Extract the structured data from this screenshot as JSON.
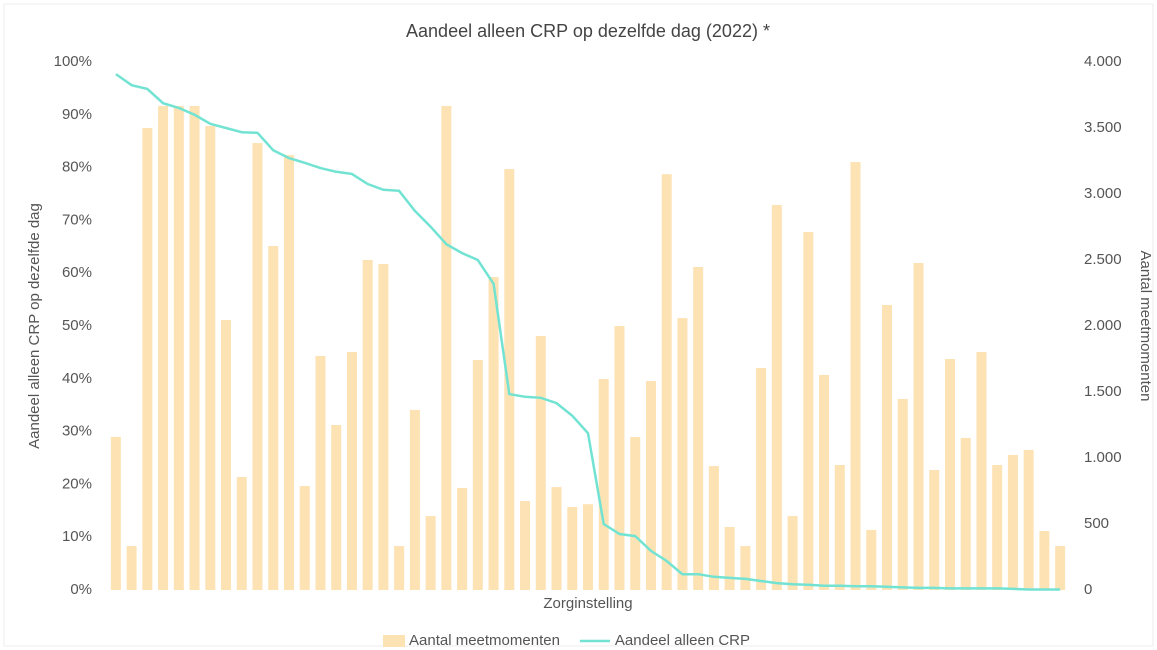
{
  "chart_data": {
    "type": "bar",
    "title": "Aandeel alleen CRP op dezelfde dag (2022) *",
    "x_label": "Zorginstelling",
    "y_label": "Aandeel alleen CRP op dezelfde dag",
    "y2_label": "Aantal meetmomenten",
    "categories": [
      null,
      null,
      null,
      null,
      null,
      null,
      null,
      null,
      null,
      null,
      null,
      null,
      null,
      null,
      null,
      null,
      null,
      null,
      null,
      null,
      null,
      null,
      null,
      null,
      null,
      null,
      null,
      null,
      null,
      null,
      null,
      null,
      null,
      null,
      null,
      null,
      null,
      null,
      null,
      null,
      null,
      null,
      null,
      null,
      null,
      null,
      null,
      null,
      null,
      null,
      null,
      null,
      null,
      null,
      null,
      null,
      null,
      null,
      null,
      null,
      null
    ],
    "series": [
      {
        "name": "Aantal meetmomenten",
        "type": "bar",
        "axis": "y2",
        "color": "#fde2b4",
        "values": [
          1160,
          333,
          3500,
          3667,
          3667,
          3667,
          3515,
          2045,
          856,
          3386,
          2606,
          3295,
          788,
          1773,
          1250,
          1803,
          2500,
          2470,
          333,
          1364,
          560,
          3667,
          773,
          1742,
          2371,
          3189,
          674,
          1924,
          780,
          629,
          650,
          1598,
          2000,
          1159,
          1583,
          3150,
          2060,
          2447,
          939,
          477,
          333,
          1682,
          2917,
          560,
          2712,
          1629,
          947,
          3242,
          455,
          2159,
          1447,
          2477,
          909,
          1750,
          1152,
          1803,
          947,
          1023,
          1061,
          447,
          333
        ]
      },
      {
        "name": "Aandeel alleen CRP",
        "type": "line",
        "color": "#72e3d2",
        "values": [
          97.7,
          95.6,
          94.9,
          92.2,
          91.3,
          90,
          88.3,
          87.5,
          86.7,
          86.6,
          83.3,
          81.8,
          80.9,
          79.9,
          79.2,
          78.8,
          76.9,
          75.8,
          75.6,
          71.8,
          68.8,
          65.5,
          63.8,
          62.5,
          58,
          37.1,
          36.6,
          36.4,
          35.4,
          33,
          29.7,
          12.5,
          10.6,
          10.2,
          7.4,
          5.5,
          3,
          3,
          2.5,
          2.3,
          2.1,
          1.7,
          1.3,
          1.1,
          1.0,
          0.8,
          0.8,
          0.7,
          0.7,
          0.6,
          0.5,
          0.4,
          0.4,
          0.3,
          0.3,
          0.3,
          0.3,
          0.2,
          0.1,
          0.1,
          0.1
        ]
      }
    ],
    "ylim": [
      0,
      100
    ],
    "yticks": [
      {
        "value": 0,
        "label": "0%"
      },
      {
        "value": 10,
        "label": "10%"
      },
      {
        "value": 20,
        "label": "20%"
      },
      {
        "value": 30,
        "label": "30%"
      },
      {
        "value": 40,
        "label": "40%"
      },
      {
        "value": 50,
        "label": "50%"
      },
      {
        "value": 60,
        "label": "60%"
      },
      {
        "value": 70,
        "label": "70%"
      },
      {
        "value": 80,
        "label": "80%"
      },
      {
        "value": 90,
        "label": "90%"
      },
      {
        "value": 100,
        "label": "100%"
      }
    ],
    "y2lim": [
      0,
      4000
    ],
    "y2ticks": [
      0,
      500,
      {
        "value": 1000,
        "label": "1.000"
      },
      {
        "value": 1500,
        "label": "1.500"
      },
      {
        "value": 2000,
        "label": "2.000"
      },
      {
        "value": 2500,
        "label": "2.500"
      },
      {
        "value": 3000,
        "label": "3.000"
      },
      {
        "value": 3500,
        "label": "3.500"
      },
      {
        "value": 4000,
        "label": "4.000"
      }
    ],
    "legend": "bottom"
  }
}
